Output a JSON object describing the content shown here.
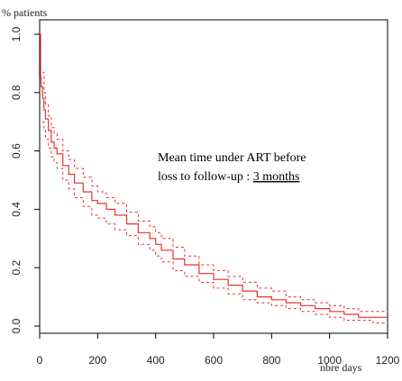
{
  "chart_data": {
    "type": "line",
    "title": "",
    "ylabel": "% patients",
    "xlabel": "nbre days",
    "xlim": [
      0,
      1200
    ],
    "ylim": [
      0,
      1.0
    ],
    "xticks": [
      0,
      200,
      400,
      600,
      800,
      1000,
      1200
    ],
    "yticks": [
      0.0,
      0.2,
      0.4,
      0.6,
      0.8,
      1.0
    ],
    "grid": false,
    "line_color": "#e8312f",
    "annotation": {
      "line1": "Mean time under ART before",
      "line2_prefix": "loss to follow-up : ",
      "line2_highlight": "3 months"
    },
    "series": [
      {
        "style": "solid",
        "x": [
          0,
          3,
          5,
          10,
          15,
          20,
          30,
          40,
          50,
          60,
          80,
          100,
          120,
          150,
          180,
          200,
          230,
          260,
          300,
          340,
          380,
          400,
          420,
          460,
          500,
          550,
          600,
          650,
          700,
          750,
          800,
          850,
          900,
          950,
          1000,
          1050,
          1100,
          1150,
          1200
        ],
        "y": [
          1.0,
          0.85,
          0.82,
          0.78,
          0.74,
          0.71,
          0.67,
          0.63,
          0.61,
          0.59,
          0.55,
          0.52,
          0.49,
          0.46,
          0.43,
          0.42,
          0.4,
          0.38,
          0.35,
          0.32,
          0.3,
          0.28,
          0.26,
          0.23,
          0.21,
          0.18,
          0.16,
          0.14,
          0.12,
          0.1,
          0.09,
          0.08,
          0.07,
          0.06,
          0.05,
          0.04,
          0.03,
          0.03,
          0.03
        ]
      },
      {
        "style": "dashed",
        "x": [
          10,
          15,
          20,
          30,
          40,
          50,
          60,
          80,
          100,
          120,
          150,
          180,
          200,
          230,
          260,
          300,
          340,
          380,
          400,
          420,
          460,
          500,
          550,
          600,
          650,
          700,
          750,
          800,
          850,
          900,
          950,
          1000,
          1050,
          1100,
          1150,
          1200
        ],
        "y": [
          0.87,
          0.8,
          0.76,
          0.72,
          0.68,
          0.66,
          0.64,
          0.6,
          0.57,
          0.54,
          0.51,
          0.48,
          0.46,
          0.44,
          0.42,
          0.39,
          0.36,
          0.34,
          0.32,
          0.3,
          0.27,
          0.24,
          0.21,
          0.19,
          0.17,
          0.15,
          0.13,
          0.12,
          0.1,
          0.09,
          0.08,
          0.07,
          0.06,
          0.05,
          0.05,
          0.05
        ]
      },
      {
        "style": "dashed",
        "x": [
          10,
          15,
          20,
          30,
          40,
          50,
          60,
          80,
          100,
          120,
          150,
          180,
          200,
          230,
          260,
          300,
          340,
          380,
          400,
          420,
          460,
          500,
          550,
          600,
          650,
          700,
          750,
          800,
          850,
          900,
          950,
          1000,
          1050,
          1100,
          1150,
          1200
        ],
        "y": [
          0.7,
          0.67,
          0.64,
          0.61,
          0.58,
          0.56,
          0.54,
          0.5,
          0.47,
          0.44,
          0.41,
          0.38,
          0.37,
          0.35,
          0.33,
          0.31,
          0.28,
          0.26,
          0.24,
          0.22,
          0.19,
          0.17,
          0.15,
          0.13,
          0.11,
          0.09,
          0.08,
          0.07,
          0.06,
          0.05,
          0.04,
          0.03,
          0.02,
          0.02,
          0.01,
          0.01
        ]
      }
    ]
  }
}
